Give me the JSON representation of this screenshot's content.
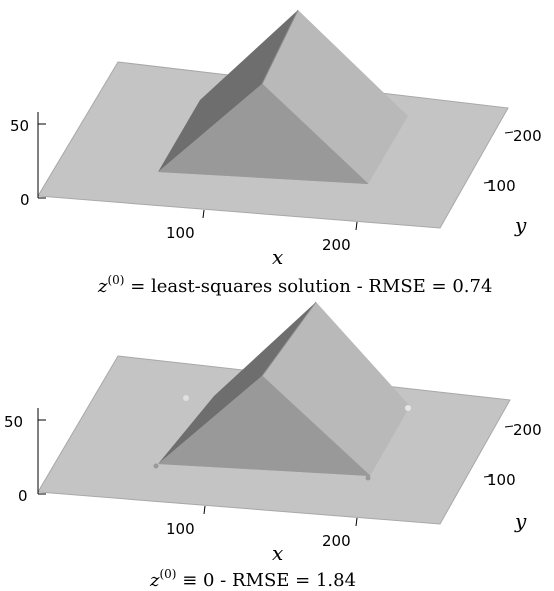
{
  "chart_data": [
    {
      "type": "surface",
      "caption_parts": [
        "z",
        "(0)",
        " = least-squares solution - RMSE = 0.74"
      ],
      "xlabel": "x",
      "ylabel": "y",
      "x_ticks": [
        "100",
        "200"
      ],
      "y_ticks": [
        "100",
        "200"
      ],
      "z_ticks": [
        "0",
        "50"
      ],
      "rmse": 0.74
    },
    {
      "type": "surface",
      "caption_parts": [
        "z",
        "(0)",
        " ≡ 0 - RMSE = 1.84"
      ],
      "xlabel": "x",
      "ylabel": "y",
      "x_ticks": [
        "100",
        "200"
      ],
      "y_ticks": [
        "100",
        "200"
      ],
      "z_ticks": [
        "0",
        "50"
      ],
      "rmse": 1.84
    }
  ],
  "colors": {
    "plane": "#c4c4c4",
    "plane_edge": "#a8a8a8",
    "face_dark": "#6e6e6e",
    "face_left": "#8a8a8a",
    "face_front": "#a6a6a6",
    "face_right": "#b7b7b7"
  }
}
